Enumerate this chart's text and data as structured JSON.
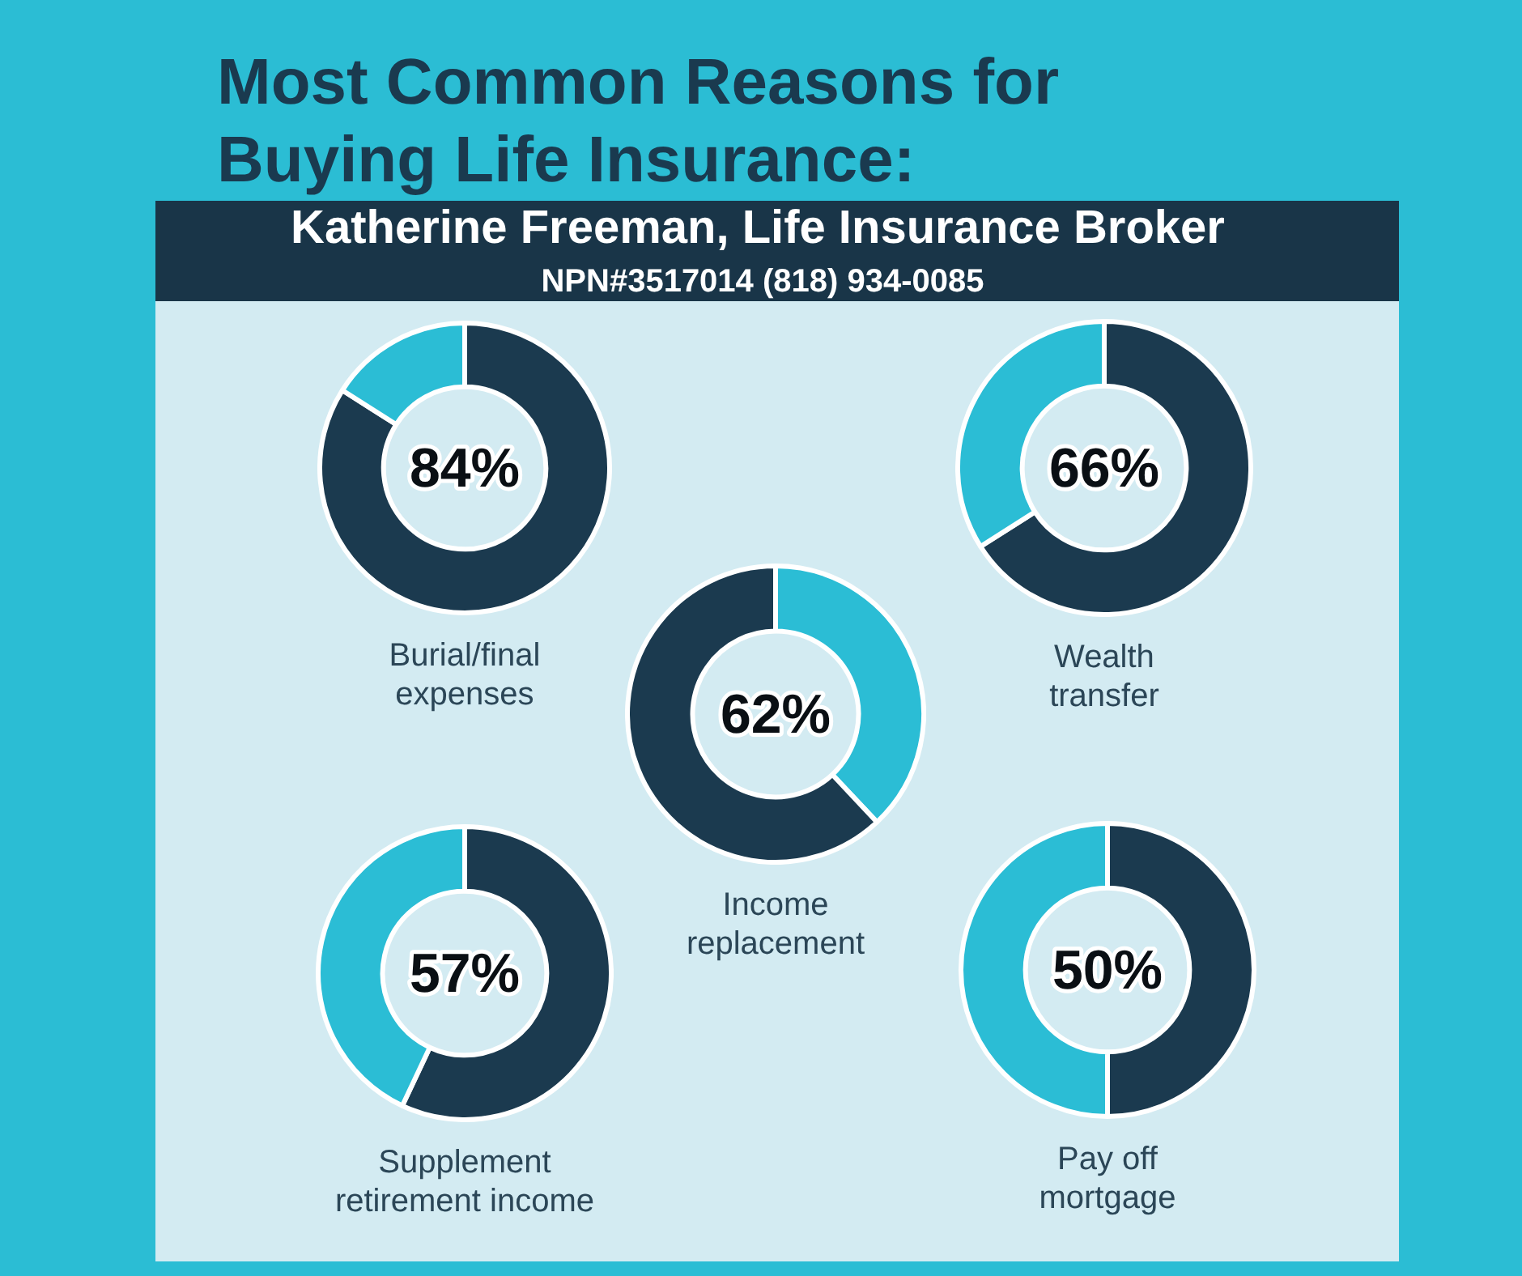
{
  "chart_data": [
    {
      "type": "other",
      "title": "Most Common Reasons for Buying Life Insurance:",
      "subtitle": "Katherine Freeman, Life Insurance Broker",
      "annotations": [
        "NPN#3517014 (818) 934-0085"
      ]
    },
    {
      "type": "donut",
      "title": "Burial/final expenses",
      "categories": [
        null,
        null
      ],
      "values": [
        84,
        16
      ],
      "colors": [
        "#1b3a4f",
        "#2bbdd5"
      ],
      "value_labels": [
        "84%",
        null
      ]
    },
    {
      "type": "donut",
      "title": "Wealth transfer",
      "categories": [
        null,
        null
      ],
      "values": [
        66,
        34
      ],
      "colors": [
        "#1b3a4f",
        "#2bbdd5"
      ],
      "value_labels": [
        "66%",
        null
      ]
    },
    {
      "type": "donut",
      "title": "Income replacement",
      "categories": [
        null,
        null
      ],
      "values": [
        38,
        62
      ],
      "colors": [
        "#2bbdd5",
        "#1b3a4f"
      ],
      "value_labels": [
        null,
        "62%"
      ]
    },
    {
      "type": "donut",
      "title": "Supplement retirement income",
      "categories": [
        null,
        null
      ],
      "values": [
        57,
        43
      ],
      "colors": [
        "#1b3a4f",
        "#2bbdd5"
      ],
      "value_labels": [
        "57%",
        null
      ]
    },
    {
      "type": "donut",
      "title": "Pay off mortgage",
      "categories": [
        null,
        null
      ],
      "values": [
        50,
        50
      ],
      "colors": [
        "#1b3a4f",
        "#2bbdd5"
      ],
      "value_labels": [
        "50%",
        null
      ]
    }
  ]
}
